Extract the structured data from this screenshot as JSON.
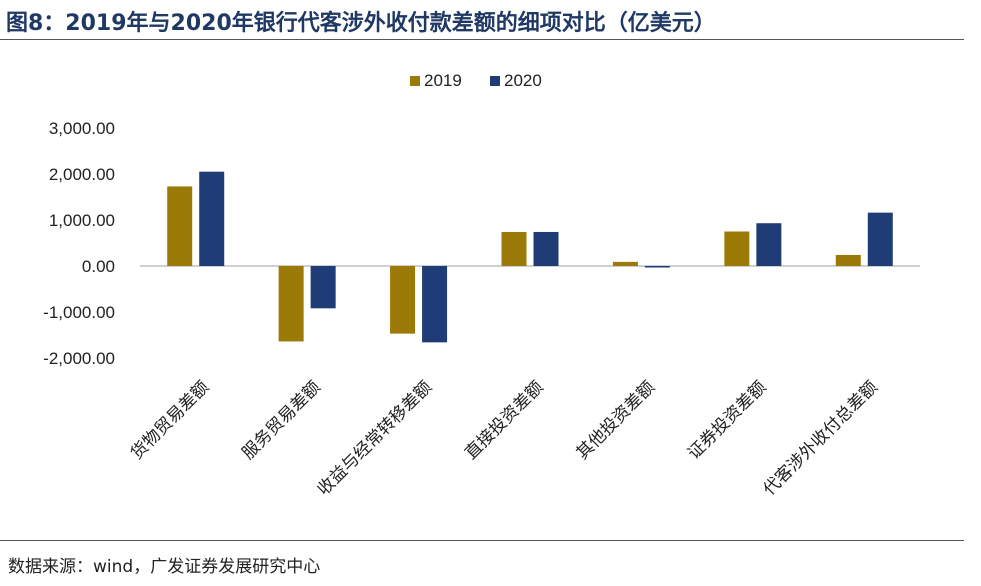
{
  "figure": {
    "title": "图8：2019年与2020年银行代客涉外收付款差额的细项对比（亿美元）",
    "source": "数据来源：wind，广发证券发展研究中心"
  },
  "colors": {
    "series_2019": "#9c7a07",
    "series_2020": "#1f3c76",
    "title": "#1f3864",
    "axis": "#bfbfbf"
  },
  "chart_data": {
    "type": "bar",
    "categories": [
      "货物贸易差额",
      "服务贸易差额",
      "收益与经常转移差额",
      "直接投资差额",
      "其他投资差额",
      "证券投资差额",
      "代客涉外收付总差额"
    ],
    "series": [
      {
        "name": "2019",
        "values": [
          1730,
          -1640,
          -1470,
          740,
          90,
          750,
          240
        ]
      },
      {
        "name": "2020",
        "values": [
          2050,
          -920,
          -1660,
          740,
          -30,
          930,
          1160
        ]
      }
    ],
    "ylim": [
      -2000,
      3000
    ],
    "yticks": [
      -2000,
      -1000,
      0,
      1000,
      2000,
      3000
    ],
    "ytick_labels": [
      "-2,000.00",
      "-1,000.00",
      "0.00",
      "1,000.00",
      "2,000.00",
      "3,000.00"
    ],
    "legend": "top",
    "grid": false
  }
}
